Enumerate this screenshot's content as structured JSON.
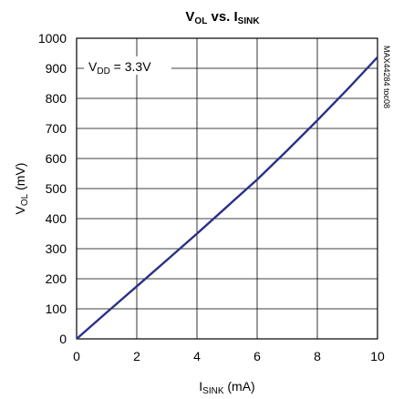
{
  "chart_data": {
    "type": "line",
    "title": {
      "main1": "V",
      "sub1": "OL",
      "main2": " vs. I",
      "sub2": "SINK"
    },
    "xlabel": {
      "main": "I",
      "sub": "SINK",
      "rest": " (mA)"
    },
    "ylabel": {
      "main": "V",
      "sub": "OL",
      "rest": " (mV)"
    },
    "xlim": [
      0,
      10
    ],
    "ylim": [
      0,
      1000
    ],
    "xticks": [
      0,
      2,
      4,
      6,
      8,
      10
    ],
    "yticks": [
      0,
      100,
      200,
      300,
      400,
      500,
      600,
      700,
      800,
      900,
      1000
    ],
    "grid": true,
    "annotation": {
      "main": "V",
      "sub": "DD",
      "rest": " = 3.3V"
    },
    "side_label": "MAX44284 toc08",
    "series": [
      {
        "color": "#2b2f86",
        "x": [
          0,
          1,
          2,
          3,
          4,
          5,
          6,
          7,
          8,
          9,
          10
        ],
        "y": [
          0,
          88,
          175,
          262,
          350,
          440,
          530,
          627,
          727,
          830,
          937
        ]
      }
    ]
  }
}
